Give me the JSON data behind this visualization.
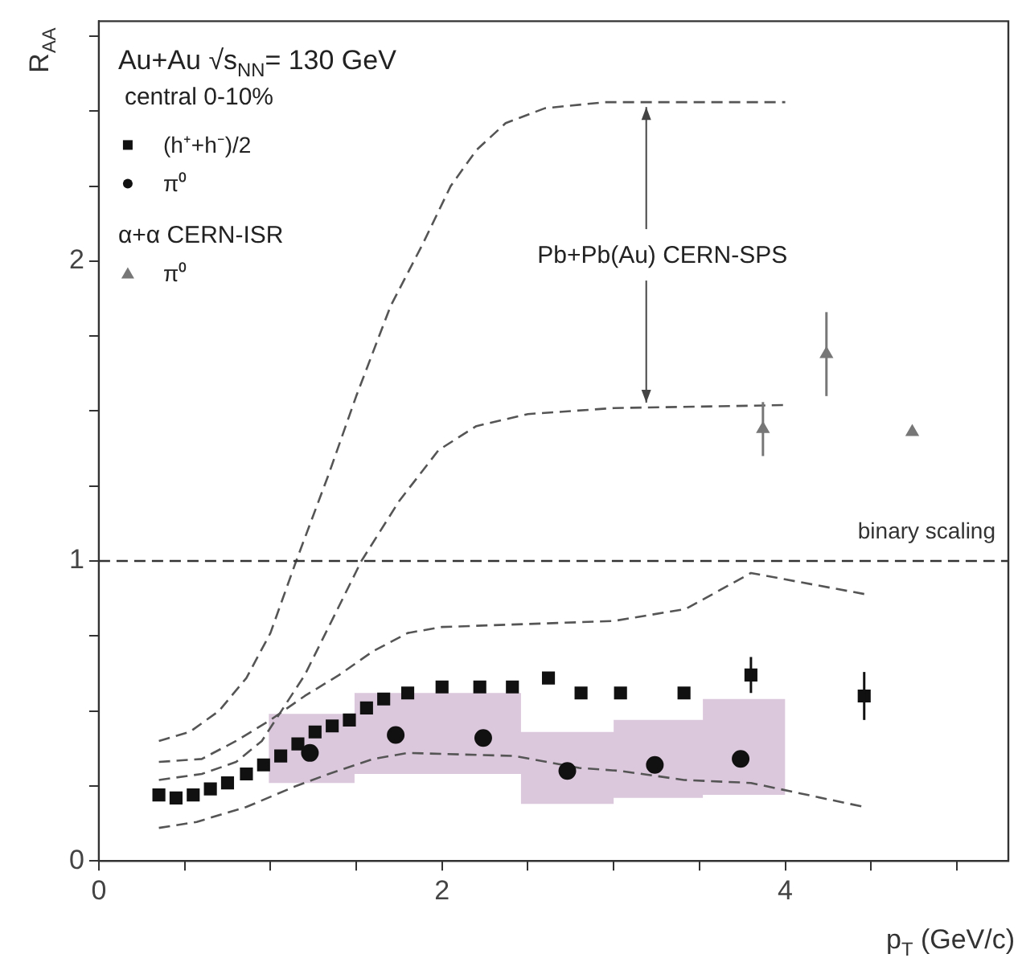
{
  "chart_data": {
    "type": "scatter",
    "title": "Au+Au √s$_{NN}$= 130 GeV",
    "subtitle": "central 0-10%",
    "xlabel": "p$_{T}$ (GeV/c)",
    "ylabel": "R$_{AA}$",
    "xlim": [
      0,
      5.3
    ],
    "ylim": [
      0,
      2.8
    ],
    "xticks": [
      0,
      {
        "value": 0.5,
        "label": null
      },
      {
        "value": 1,
        "label": null
      },
      {
        "value": 1.5,
        "label": null
      },
      2,
      {
        "value": 2.5,
        "label": null
      },
      {
        "value": 3,
        "label": null
      },
      {
        "value": 3.5,
        "label": null
      },
      4,
      {
        "value": 4.5,
        "label": null
      },
      {
        "value": 5,
        "label": null
      }
    ],
    "yticks": [
      0,
      {
        "value": 0.25,
        "label": null
      },
      {
        "value": 0.5,
        "label": null
      },
      {
        "value": 0.75,
        "label": null
      },
      1,
      {
        "value": 1.25,
        "label": null
      },
      {
        "value": 1.5,
        "label": null
      },
      {
        "value": 1.75,
        "label": null
      },
      2,
      {
        "value": 2.25,
        "label": null
      },
      {
        "value": 2.5,
        "label": null
      },
      {
        "value": 2.75,
        "label": null
      }
    ],
    "grid": false,
    "legend": "top left",
    "annotations": [
      "α+α CERN-ISR",
      {
        "text": "Pb+Pb(Au) CERN-SPS",
        "x": 3.19,
        "y": 2.53
      }
    ],
    "ref_lines": [
      {
        "axis": "y",
        "value": 1,
        "label": "binary scaling",
        "line_style": "dashed",
        "color": "#333333"
      }
    ],
    "series": [
      {
        "type": "area",
        "color": "#dcc8dc",
        "x": [
          0.99,
          1.49,
          1.49,
          2.46,
          2.46,
          3.0,
          3.0,
          3.52,
          3.52,
          4.0
        ],
        "values": [
          null,
          null,
          null,
          null,
          null,
          null,
          null,
          null,
          null,
          null
        ],
        "lower": [
          0.26,
          0.26,
          0.29,
          0.29,
          0.19,
          0.19,
          0.21,
          0.21,
          0.22,
          0.22
        ],
        "upper": [
          0.49,
          0.49,
          0.56,
          0.56,
          0.43,
          0.43,
          0.47,
          0.47,
          0.54,
          0.54
        ]
      },
      {
        "name": "(h⁺+h⁻)/2",
        "marker": "square",
        "color": "#111111",
        "x": [
          0.35,
          0.45,
          0.55,
          0.65,
          0.75,
          0.86,
          0.96,
          1.06,
          1.16,
          1.26,
          1.36,
          1.46,
          1.56,
          1.66,
          1.8,
          2.0,
          2.22,
          2.41,
          2.62,
          2.81,
          3.04,
          3.41,
          3.8,
          4.46
        ],
        "values": [
          0.22,
          0.21,
          0.22,
          0.24,
          0.26,
          0.29,
          0.32,
          0.35,
          0.39,
          0.43,
          0.45,
          0.47,
          0.51,
          0.54,
          0.56,
          0.58,
          0.58,
          0.58,
          0.61,
          0.56,
          0.56,
          0.56,
          0.62,
          0.55
        ],
        "errors": [
          null,
          null,
          null,
          null,
          null,
          null,
          null,
          null,
          null,
          null,
          null,
          null,
          null,
          null,
          null,
          null,
          null,
          null,
          null,
          null,
          null,
          null,
          0.06,
          0.08
        ]
      },
      {
        "name": "π⁰",
        "marker": "circle",
        "color": "#111111",
        "x": [
          1.23,
          1.73,
          2.24,
          2.73,
          3.24,
          3.74
        ],
        "values": [
          0.36,
          0.42,
          0.41,
          0.3,
          0.32,
          0.34
        ]
      },
      {
        "name": "π⁰",
        "marker": "triangle",
        "color": "#777777",
        "x": [
          3.87,
          4.24,
          4.74
        ],
        "values": [
          1.44,
          1.69,
          1.43
        ],
        "errors": [
          0.09,
          0.14,
          null
        ]
      },
      {
        "type": "line",
        "line_style": "dashed",
        "marker": "none",
        "color": "#555555",
        "x": [
          0.35,
          0.53,
          0.7,
          0.86,
          1.0,
          1.15,
          1.34,
          1.5,
          1.7,
          1.89,
          2.05,
          2.2,
          2.37,
          2.6,
          2.95,
          4.0
        ],
        "values": [
          0.4,
          0.43,
          0.5,
          0.61,
          0.76,
          1.0,
          1.29,
          1.55,
          1.85,
          2.06,
          2.25,
          2.37,
          2.46,
          2.51,
          2.53,
          2.53
        ]
      },
      {
        "type": "line",
        "line_style": "dashed",
        "marker": "none",
        "color": "#555555",
        "x": [
          0.35,
          0.6,
          0.8,
          0.95,
          1.2,
          1.4,
          1.53,
          1.75,
          1.98,
          2.2,
          2.5,
          3.0,
          4.0
        ],
        "values": [
          0.27,
          0.29,
          0.33,
          0.4,
          0.62,
          0.85,
          1.0,
          1.2,
          1.37,
          1.45,
          1.49,
          1.51,
          1.52
        ]
      },
      {
        "type": "line",
        "line_style": "dashed",
        "marker": "none",
        "color": "#555555",
        "x": [
          0.35,
          0.6,
          0.8,
          1.0,
          1.2,
          1.4,
          1.6,
          1.8,
          2.0,
          2.5,
          3.0,
          3.42,
          3.8,
          4.46
        ],
        "values": [
          0.33,
          0.34,
          0.4,
          0.47,
          0.55,
          0.62,
          0.7,
          0.76,
          0.78,
          0.79,
          0.8,
          0.84,
          0.96,
          0.89
        ]
      },
      {
        "type": "line",
        "line_style": "dashed",
        "marker": "none",
        "color": "#555555",
        "x": [
          0.35,
          0.57,
          0.86,
          1.15,
          1.34,
          1.6,
          1.8,
          2.42,
          2.8,
          3.04,
          3.41,
          3.8,
          4.46
        ],
        "values": [
          0.11,
          0.13,
          0.18,
          0.25,
          0.29,
          0.34,
          0.36,
          0.35,
          0.31,
          0.3,
          0.27,
          0.26,
          0.18
        ]
      }
    ]
  }
}
